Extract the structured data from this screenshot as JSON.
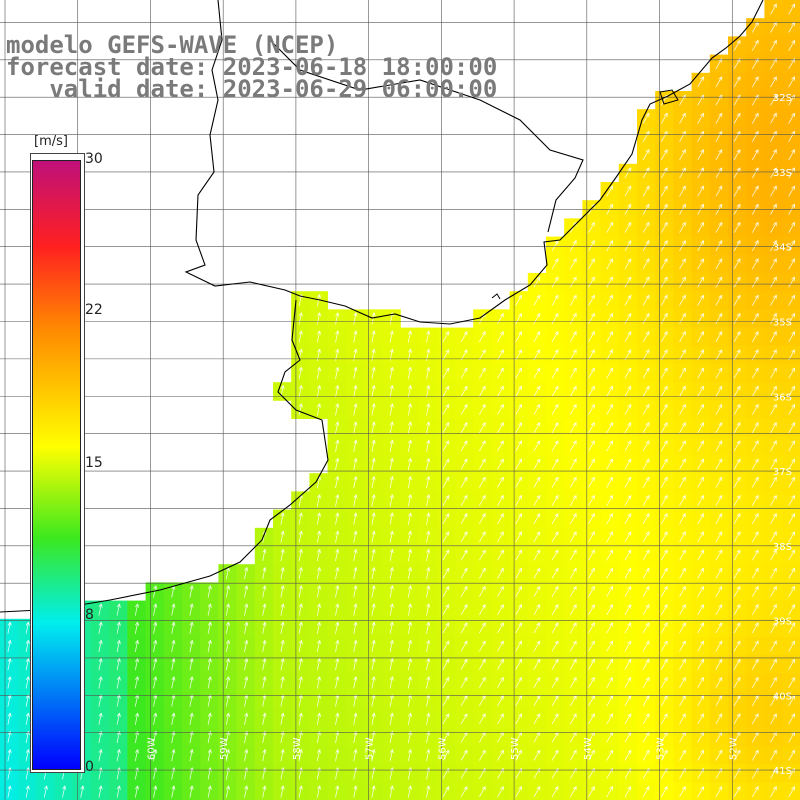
{
  "title": {
    "line1": "modelo GEFS-WAVE (NCEP)",
    "line2": "forecast date: 2023-06-18 18:00:00",
    "line3": "   valid date: 2023-06-29 06:00:00"
  },
  "colorbar": {
    "unit": "[m/s]",
    "ticks": [
      "30",
      "22",
      "15",
      "8",
      "0"
    ],
    "colors": [
      "#0000ff",
      "#00eeee",
      "#3ce81e",
      "#ffff00",
      "#ff8c00",
      "#ff2020",
      "#c0107a"
    ]
  },
  "map": {
    "lon_range": [
      -62,
      -51
    ],
    "lat_range": [
      -41.4,
      -30.7
    ],
    "lon_labels": [
      "61W",
      "60W",
      "59W",
      "58W",
      "57W",
      "56W",
      "55W",
      "54W",
      "53W",
      "52W",
      "51W"
    ],
    "lat_labels": [
      "32S",
      "33S",
      "34S",
      "35S",
      "36S",
      "37S",
      "38S",
      "39S",
      "40S",
      "41S"
    ],
    "grid": true,
    "land_color": "#ffffff",
    "coast_color": "#000000"
  }
}
